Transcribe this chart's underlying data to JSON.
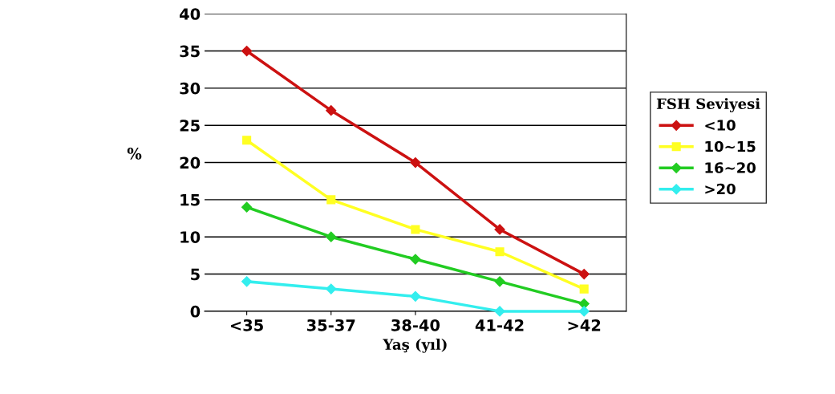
{
  "chart_data": {
    "type": "line",
    "xlabel": "Yaş (yıl)",
    "ylabel": "%",
    "legend_title": "FSH Seviyesi",
    "categories": [
      "<35",
      "35-37",
      "38-40",
      "41-42",
      ">42"
    ],
    "series": [
      {
        "name": "<10",
        "color": "#cc1111",
        "marker": "diamond",
        "values": [
          35,
          27,
          20,
          11,
          5
        ]
      },
      {
        "name": "10~15",
        "color": "#ffff22",
        "marker": "square",
        "values": [
          23,
          15,
          11,
          8,
          3
        ]
      },
      {
        "name": "16~20",
        "color": "#22cc22",
        "marker": "diamond",
        "values": [
          14,
          10,
          7,
          4,
          1
        ]
      },
      {
        "name": ">20",
        "color": "#33eeee",
        "marker": "diamond",
        "values": [
          4,
          3,
          2,
          0,
          0
        ]
      }
    ],
    "ylim": [
      0,
      40
    ],
    "yticks": [
      0,
      5,
      10,
      15,
      20,
      25,
      30,
      35,
      40
    ],
    "grid": "y",
    "legend": "right"
  }
}
